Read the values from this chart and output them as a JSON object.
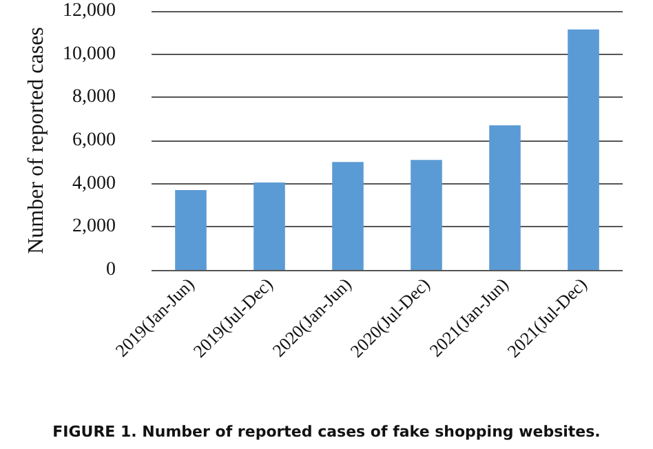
{
  "chart_data": {
    "type": "bar",
    "title": "FIGURE 1. Number of reported cases of fake shopping websites.",
    "ylabel": "Number of reported cases",
    "categories": [
      "2019(Jan-Jun)",
      "2019(Jul-Dec)",
      "2020(Jan-Jun)",
      "2020(Jul-Dec)",
      "2021(Jan-Jun)",
      "2021(Jul-Dec)"
    ],
    "values": [
      3700,
      4050,
      5000,
      5100,
      6700,
      11150
    ],
    "color": "#5b9bd5",
    "ylim": [
      0,
      12000
    ],
    "yticks": [
      0,
      {
        "value": 2000,
        "label": "2,000"
      },
      {
        "value": 4000,
        "label": "4,000"
      },
      {
        "value": 6000,
        "label": "6,000"
      },
      {
        "value": 8000,
        "label": "8,000"
      },
      {
        "value": 10000,
        "label": "10,000"
      },
      {
        "value": 12000,
        "label": "12,000"
      }
    ],
    "grid": "y"
  }
}
